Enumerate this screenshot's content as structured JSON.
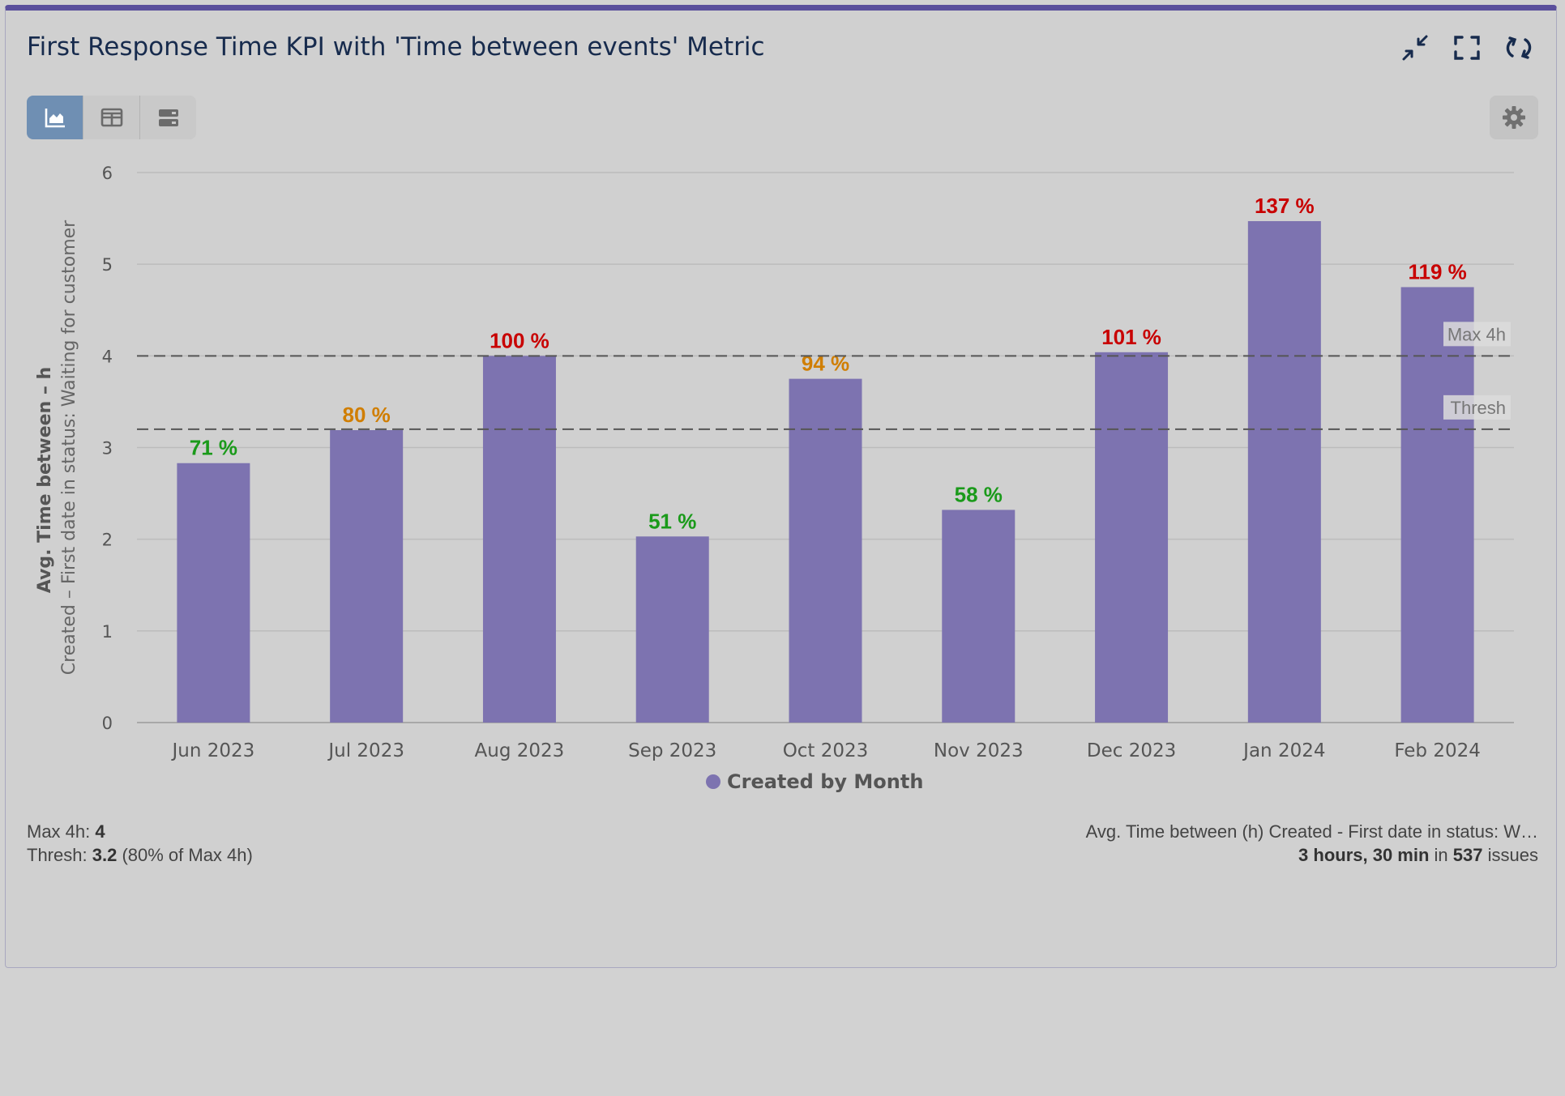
{
  "header": {
    "title": "First Response Time KPI with 'Time between events' Metric",
    "icons": [
      "collapse-icon",
      "fullscreen-icon",
      "refresh-icon"
    ]
  },
  "toolbar": {
    "views": [
      "chart-view-icon",
      "table-view-icon",
      "list-view-icon"
    ],
    "active_view": "chart-view-icon",
    "settings_icon": "gear-icon"
  },
  "colors": {
    "bar": "#7d73b0",
    "good": "#1a9a1a",
    "warning": "#d07e00",
    "bad": "#c80000",
    "accent": "#5a4f9c"
  },
  "chart_data": {
    "type": "bar",
    "title": "",
    "ylabel_line1": "Avg. Time between – h",
    "ylabel_line2": "Created – First date in status: Waiting for customer",
    "ylim": [
      0,
      6
    ],
    "yticks": [
      "0",
      "1",
      "2",
      "3",
      "4",
      "5",
      "6"
    ],
    "categories": [
      "Jun 2023",
      "Jul 2023",
      "Aug 2023",
      "Sep 2023",
      "Oct 2023",
      "Nov 2023",
      "Dec 2023",
      "Jan 2024",
      "Feb 2024"
    ],
    "series": [
      {
        "name": "Created by Month",
        "values": [
          2.83,
          3.19,
          4.0,
          2.03,
          3.75,
          2.32,
          4.04,
          5.47,
          4.75
        ]
      }
    ],
    "data_labels": [
      "71 %",
      "80 %",
      "100 %",
      "51 %",
      "94 %",
      "58 %",
      "101 %",
      "137 %",
      "119 %"
    ],
    "label_status": [
      "good",
      "warning",
      "bad",
      "good",
      "warning",
      "good",
      "bad",
      "bad",
      "bad"
    ],
    "reference_lines": [
      {
        "label": "Max 4h",
        "value": 4
      },
      {
        "label": "Thresh",
        "value": 3.2
      }
    ],
    "legend": "Created by Month",
    "legend_position": "bottom",
    "grid": true
  },
  "footer": {
    "max_label": "Max 4h:",
    "max_value": "4",
    "thresh_label": "Thresh:",
    "thresh_value": "3.2",
    "thresh_note": "(80% of Max 4h)",
    "metric_label": "Avg. Time between (h) Created - First date in status: W…",
    "metric_value": "3 hours, 30 min",
    "in_word": "in",
    "issue_count": "537",
    "issues_word": "issues"
  }
}
